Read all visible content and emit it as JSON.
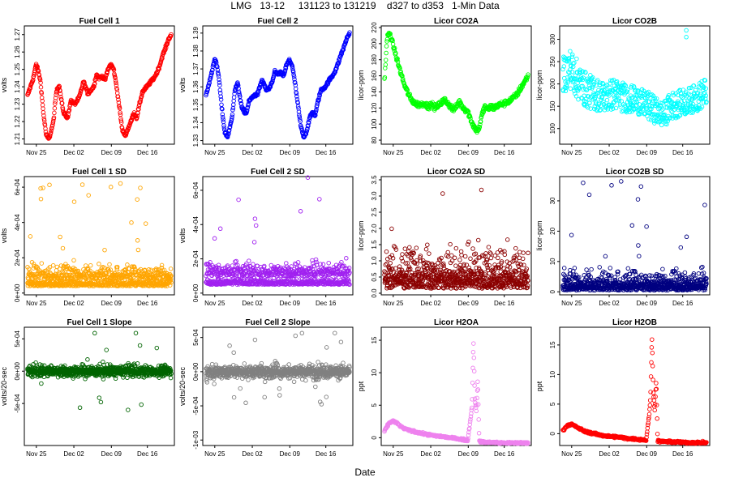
{
  "page": {
    "title": "LMG   13-12     131123 to 131219    d327 to d353   1-Min Data",
    "xlabel": "Date"
  },
  "chart_data": [
    {
      "type": "scatter",
      "title": "Fuel Cell 1",
      "ylabel": "volts",
      "color": "#ff0000",
      "x_ticks": [
        "Nov 25",
        "Dec 02",
        "Dec 09",
        "Dec 16"
      ],
      "y_ticks": [
        "1.21",
        "1.22",
        "1.23",
        "1.24",
        "1.25",
        "1.26",
        "1.27"
      ],
      "ylim": [
        1.207,
        1.275
      ],
      "series": {
        "name": "Fuel Cell 1",
        "kind": "curve",
        "x": [
          0,
          0.04,
          0.06,
          0.075,
          0.09,
          0.11,
          0.13,
          0.15,
          0.18,
          0.2,
          0.22,
          0.25,
          0.28,
          0.3,
          0.33,
          0.36,
          0.39,
          0.42,
          0.44,
          0.46,
          0.48,
          0.5,
          0.52,
          0.54,
          0.56,
          0.58,
          0.6,
          0.62,
          0.64,
          0.66,
          0.68,
          0.7,
          0.72,
          0.74,
          0.76,
          0.78,
          0.8,
          0.83,
          0.86,
          0.88,
          0.9,
          0.92,
          0.94,
          0.96,
          0.98,
          1
        ],
        "y": [
          1.235,
          1.245,
          1.253,
          1.249,
          1.243,
          1.225,
          1.212,
          1.21,
          1.22,
          1.237,
          1.241,
          1.225,
          1.222,
          1.232,
          1.23,
          1.234,
          1.243,
          1.236,
          1.238,
          1.24,
          1.247,
          1.245,
          1.246,
          1.244,
          1.25,
          1.253,
          1.25,
          1.24,
          1.228,
          1.215,
          1.212,
          1.216,
          1.22,
          1.225,
          1.222,
          1.23,
          1.237,
          1.24,
          1.243,
          1.245,
          1.248,
          1.252,
          1.258,
          1.262,
          1.267,
          1.27
        ],
        "jitter": 0.0015
      }
    },
    {
      "type": "scatter",
      "title": "Fuel Cell 2",
      "ylabel": "volts",
      "color": "#0000ff",
      "x_ticks": [
        "Nov 25",
        "Dec 02",
        "Dec 09",
        "Dec 16"
      ],
      "y_ticks": [
        "1.33",
        "1.34",
        "1.35",
        "1.36",
        "1.37",
        "1.38",
        "1.39"
      ],
      "ylim": [
        1.328,
        1.394
      ],
      "series": {
        "name": "Fuel Cell 2",
        "kind": "curve",
        "x": [
          0,
          0.04,
          0.06,
          0.075,
          0.09,
          0.11,
          0.13,
          0.15,
          0.18,
          0.2,
          0.22,
          0.25,
          0.28,
          0.3,
          0.33,
          0.36,
          0.39,
          0.42,
          0.44,
          0.46,
          0.48,
          0.5,
          0.52,
          0.54,
          0.56,
          0.58,
          0.6,
          0.62,
          0.64,
          0.66,
          0.68,
          0.7,
          0.72,
          0.74,
          0.76,
          0.78,
          0.8,
          0.83,
          0.86,
          0.88,
          0.9,
          0.92,
          0.94,
          0.96,
          0.98,
          1
        ],
        "y": [
          1.355,
          1.368,
          1.376,
          1.372,
          1.365,
          1.348,
          1.335,
          1.332,
          1.342,
          1.358,
          1.362,
          1.348,
          1.345,
          1.352,
          1.355,
          1.356,
          1.364,
          1.358,
          1.359,
          1.362,
          1.369,
          1.367,
          1.368,
          1.366,
          1.372,
          1.375,
          1.372,
          1.362,
          1.35,
          1.338,
          1.332,
          1.335,
          1.342,
          1.346,
          1.344,
          1.352,
          1.358,
          1.36,
          1.364,
          1.366,
          1.369,
          1.373,
          1.378,
          1.382,
          1.387,
          1.39
        ],
        "jitter": 0.0015
      }
    },
    {
      "type": "scatter",
      "title": "Licor CO2A",
      "ylabel": "licor-ppm",
      "color": "#00ff00",
      "x_ticks": [
        "Nov 25",
        "Dec 02",
        "Dec 09",
        "Dec 16"
      ],
      "y_ticks": [
        "80",
        "100",
        "120",
        "140",
        "160",
        "180",
        "200",
        "220"
      ],
      "ylim": [
        75,
        222
      ],
      "series": {
        "name": "Licor CO2A",
        "kind": "curve",
        "x": [
          0,
          0.02,
          0.04,
          0.06,
          0.08,
          0.1,
          0.12,
          0.14,
          0.16,
          0.18,
          0.2,
          0.22,
          0.25,
          0.28,
          0.3,
          0.33,
          0.36,
          0.39,
          0.42,
          0.45,
          0.48,
          0.5,
          0.52,
          0.55,
          0.58,
          0.6,
          0.62,
          0.64,
          0.66,
          0.68,
          0.7,
          0.72,
          0.74,
          0.76,
          0.8,
          0.84,
          0.88,
          0.92,
          0.96,
          1
        ],
        "y": [
          155,
          210,
          212,
          198,
          185,
          172,
          160,
          148,
          140,
          132,
          128,
          125,
          124,
          126,
          122,
          124,
          120,
          126,
          130,
          124,
          118,
          121,
          128,
          120,
          116,
          106,
          98,
          92,
          95,
          112,
          122,
          118,
          122,
          120,
          124,
          126,
          130,
          136,
          148,
          160
        ],
        "jitter": 6
      }
    },
    {
      "type": "scatter",
      "title": "Licor CO2B",
      "ylabel": "licor-ppm",
      "color": "#00ffff",
      "x_ticks": [
        "Nov 25",
        "Dec 02",
        "Dec 09",
        "Dec 16"
      ],
      "y_ticks": [
        "100",
        "150",
        "200",
        "250",
        "300"
      ],
      "ylim": [
        65,
        330
      ],
      "series": {
        "name": "Licor CO2B",
        "kind": "band",
        "x": [
          0,
          0.05,
          0.1,
          0.15,
          0.2,
          0.25,
          0.3,
          0.35,
          0.4,
          0.45,
          0.5,
          0.55,
          0.6,
          0.65,
          0.7,
          0.75,
          0.8,
          0.85,
          0.9,
          0.95,
          1
        ],
        "y": [
          220,
          235,
          210,
          190,
          180,
          175,
          170,
          178,
          172,
          168,
          165,
          158,
          150,
          140,
          130,
          150,
          155,
          160,
          165,
          172,
          185
        ],
        "spread": [
          40,
          45,
          45,
          40,
          38,
          36,
          34,
          36,
          34,
          32,
          30,
          30,
          32,
          30,
          28,
          32,
          30,
          30,
          30,
          32,
          32
        ],
        "jitter": 3
      }
    },
    {
      "type": "scatter",
      "title": "Fuel Cell 1 SD",
      "ylabel": "volts",
      "color": "#ffa500",
      "x_ticks": [
        "Nov 25",
        "Dec 02",
        "Dec 09",
        "Dec 16"
      ],
      "y_ticks": [
        "0e+00",
        "2e-04",
        "4e-04",
        "6e-04"
      ],
      "ylim": [
        -1e-05,
        0.00066
      ],
      "series": {
        "name": "Fuel Cell 1 SD",
        "kind": "noise",
        "base": 8e-05,
        "amp": 0.00012,
        "spikes": 0.00055
      }
    },
    {
      "type": "scatter",
      "title": "Fuel Cell 2 SD",
      "ylabel": "volts",
      "color": "#a020f0",
      "x_ticks": [
        "Nov 25",
        "Dec 02",
        "Dec 09",
        "Dec 16"
      ],
      "y_ticks": [
        "0e+00",
        "2e-04",
        "4e-04",
        "6e-04"
      ],
      "ylim": [
        -1e-05,
        0.00068
      ],
      "series": {
        "name": "Fuel Cell 2 SD",
        "kind": "noise",
        "base": 0.0001,
        "amp": 0.00012,
        "spikes": 0.00058
      }
    },
    {
      "type": "scatter",
      "title": "Licor CO2A SD",
      "ylabel": "licor-ppm",
      "color": "#8b0000",
      "x_ticks": [
        "Nov 25",
        "Dec 02",
        "Dec 09",
        "Dec 16"
      ],
      "y_ticks": [
        "0.0",
        "0.5",
        "1.0",
        "1.5",
        "2.0",
        "2.5",
        "3.0",
        "3.5"
      ],
      "ylim": [
        -0.05,
        3.6
      ],
      "series": {
        "name": "Licor CO2A SD",
        "kind": "noise",
        "base": 0.3,
        "amp": 1.8,
        "spikes": 3.4
      }
    },
    {
      "type": "scatter",
      "title": "Licor CO2B SD",
      "ylabel": "licor-ppm",
      "color": "#000080",
      "x_ticks": [
        "Nov 25",
        "Dec 02",
        "Dec 09",
        "Dec 16"
      ],
      "y_ticks": [
        "0",
        "10",
        "20",
        "30"
      ],
      "ylim": [
        -1,
        38
      ],
      "series": {
        "name": "Licor CO2B SD",
        "kind": "noise",
        "base": 1,
        "amp": 10,
        "spikes": 36
      }
    },
    {
      "type": "scatter",
      "title": "Fuel Cell 1 Slope",
      "ylabel": "volts/20-sec",
      "color": "#006400",
      "x_ticks": [
        "Nov 25",
        "Dec 02",
        "Dec 09",
        "Dec 16"
      ],
      "y_ticks": [
        "-5e-04",
        "0e+00",
        "5e-04"
      ],
      "ylim": [
        -0.00115,
        0.00068
      ],
      "series": {
        "name": "Fuel Cell 1 Slope",
        "kind": "symnoise",
        "amp": 0.00018,
        "spikes": 0.0006
      }
    },
    {
      "type": "scatter",
      "title": "Fuel Cell 2 Slope",
      "ylabel": "volts/20-sec",
      "color": "#808080",
      "x_ticks": [
        "Nov 25",
        "Dec 02",
        "Dec 09",
        "Dec 16"
      ],
      "y_ticks": [
        "-1e-03",
        "-5e-04",
        "0e+00",
        "5e-04"
      ],
      "ylim": [
        -0.00108,
        0.00065
      ],
      "series": {
        "name": "Fuel Cell 2 Slope",
        "kind": "symnoise",
        "amp": 0.0002,
        "spikes": 0.0006
      }
    },
    {
      "type": "scatter",
      "title": "Licor H2OA",
      "ylabel": "ppt",
      "color": "#ee82ee",
      "x_ticks": [
        "Nov 25",
        "Dec 02",
        "Dec 09",
        "Dec 16"
      ],
      "y_ticks": [
        "0",
        "5",
        "10",
        "15"
      ],
      "ylim": [
        -1.2,
        17
      ],
      "series": {
        "name": "Licor H2OA",
        "kind": "curve",
        "x": [
          0,
          0.03,
          0.06,
          0.09,
          0.12,
          0.15,
          0.2,
          0.25,
          0.3,
          0.35,
          0.4,
          0.45,
          0.5,
          0.55,
          0.58,
          0.6,
          0.61,
          0.62,
          0.63,
          0.64,
          0.65,
          0.66,
          0.68,
          0.7,
          0.75,
          0.8,
          0.85,
          0.9,
          0.95,
          1
        ],
        "y": [
          1,
          2.2,
          2.6,
          2.2,
          1.6,
          1.3,
          1,
          0.7,
          0.5,
          0.3,
          0.2,
          0,
          -0.1,
          -0.3,
          -0.4,
          3,
          5,
          15,
          6,
          4,
          9,
          -0.6,
          -0.6,
          -0.7,
          -0.7,
          -0.8,
          -0.8,
          -0.8,
          -0.8,
          -0.8
        ],
        "jitter": 0.25
      }
    },
    {
      "type": "scatter",
      "title": "Licor H2OB",
      "ylabel": "ppt",
      "color": "#ff0000",
      "x_ticks": [
        "Nov 25",
        "Dec 02",
        "Dec 09",
        "Dec 16"
      ],
      "y_ticks": [
        "0",
        "5",
        "10",
        "15"
      ],
      "ylim": [
        -2,
        18
      ],
      "series": {
        "name": "Licor H2OB",
        "kind": "curve",
        "x": [
          0,
          0.03,
          0.06,
          0.09,
          0.12,
          0.15,
          0.2,
          0.25,
          0.3,
          0.35,
          0.4,
          0.45,
          0.5,
          0.55,
          0.58,
          0.6,
          0.61,
          0.62,
          0.63,
          0.64,
          0.65,
          0.66,
          0.68,
          0.7,
          0.75,
          0.8,
          0.85,
          0.9,
          0.95,
          1
        ],
        "y": [
          0.5,
          1.4,
          1.6,
          1.2,
          0.8,
          0.4,
          0.1,
          -0.2,
          -0.4,
          -0.5,
          -0.6,
          -0.8,
          -0.9,
          -1,
          -1.1,
          3,
          6,
          16.5,
          7,
          4,
          9,
          -1.2,
          -1.3,
          -1.3,
          -1.4,
          -1.4,
          -1.5,
          -1.5,
          -1.5,
          -1.5
        ],
        "jitter": 0.3
      }
    }
  ]
}
